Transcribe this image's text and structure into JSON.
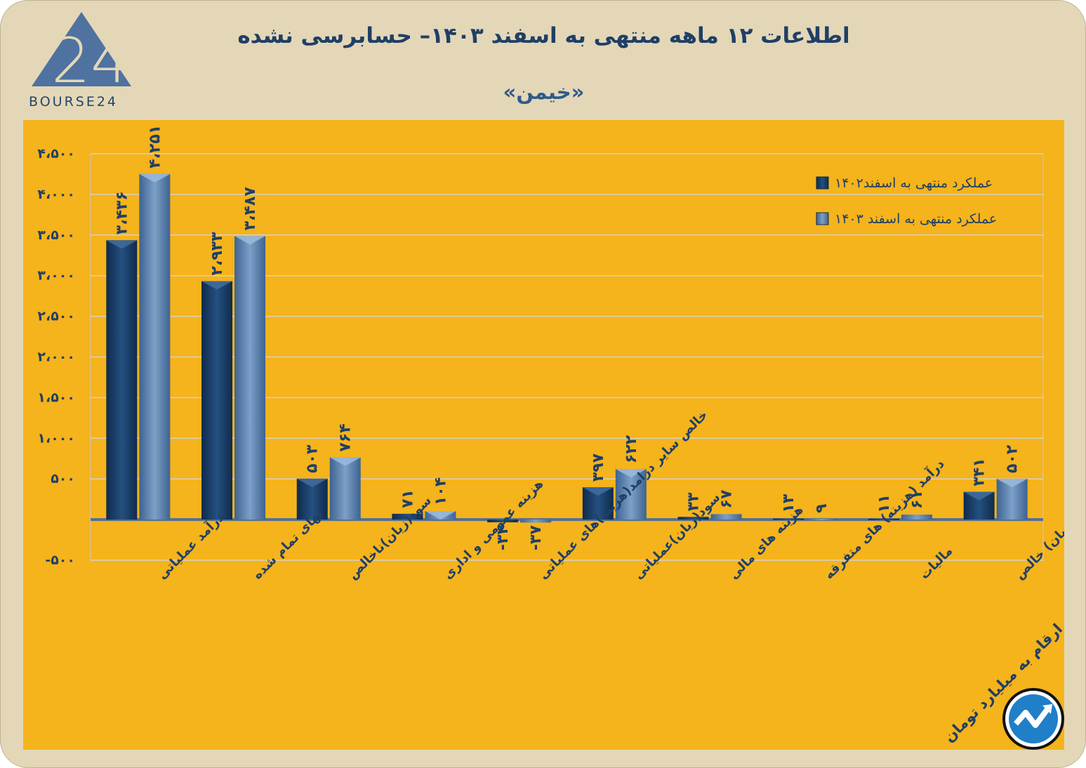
{
  "header": {
    "title": "اطلاعات ۱۲ ماهه منتهی به اسفند ۱۴۰۳– حسابرسی نشده",
    "subtitle": "«خیمن»",
    "logo_text": "BOURSE24",
    "unit_note": "ارقام به میلیارد تومان"
  },
  "chart_data": {
    "type": "bar",
    "title": "اطلاعات ۱۲ ماهه منتهی به اسفند ۱۴۰۳– حسابرسی نشده",
    "categories": [
      "درآمد عملیاتی",
      "بهای تمام شده",
      "سود(زیان)ناخالص",
      "هزینه عمومی و اداری",
      "خالص سایر درامد(هزینه)های عملیاتی",
      "سود(زیان)عملیاتی",
      "هزینه های مالی",
      "درآمد (هزینه) های متفرقه",
      "مالیات",
      "سود(زیان) خالص"
    ],
    "series": [
      {
        "name": "عملکرد منتهی به اسفند۱۴۰۲",
        "color": "#173a63",
        "values": [
          3436,
          2933,
          503,
          71,
          -34,
          397,
          33,
          13,
          11,
          341
        ],
        "labels": [
          "۳،۴۳۶",
          "۲،۹۳۳",
          "۵۰۳",
          "۷۱",
          "-۳۴",
          "۳۹۷",
          "۳۳",
          "۱۳",
          "۱۱",
          "۳۴۱"
        ]
      },
      {
        "name": "عملکرد منتهی به اسفند ۱۴۰۳",
        "color": "#5a7fab",
        "values": [
          4251,
          3487,
          764,
          104,
          -37,
          622,
          67,
          9,
          61,
          502
        ],
        "labels": [
          "۴،۲۵۱",
          "۳،۴۸۷",
          "۷۶۴",
          "۱۰۴",
          "-۳۷",
          "۶۲۲",
          "۶۷",
          "۹",
          "۶۱",
          "۵۰۲"
        ]
      }
    ],
    "ylim": [
      -500,
      4500
    ],
    "yticks": [
      -500,
      500,
      1000,
      1500,
      2000,
      2500,
      3000,
      3500,
      4000,
      4500
    ],
    "ytick_labels": [
      "-۵۰۰",
      "۵۰۰",
      "۱،۰۰۰",
      "۱،۵۰۰",
      "۲،۰۰۰",
      "۲،۵۰۰",
      "۳،۰۰۰",
      "۳،۵۰۰",
      "۴،۰۰۰",
      "۴،۵۰۰"
    ],
    "grid": true,
    "legend": "top-right",
    "xlabel": "",
    "ylabel": ""
  }
}
